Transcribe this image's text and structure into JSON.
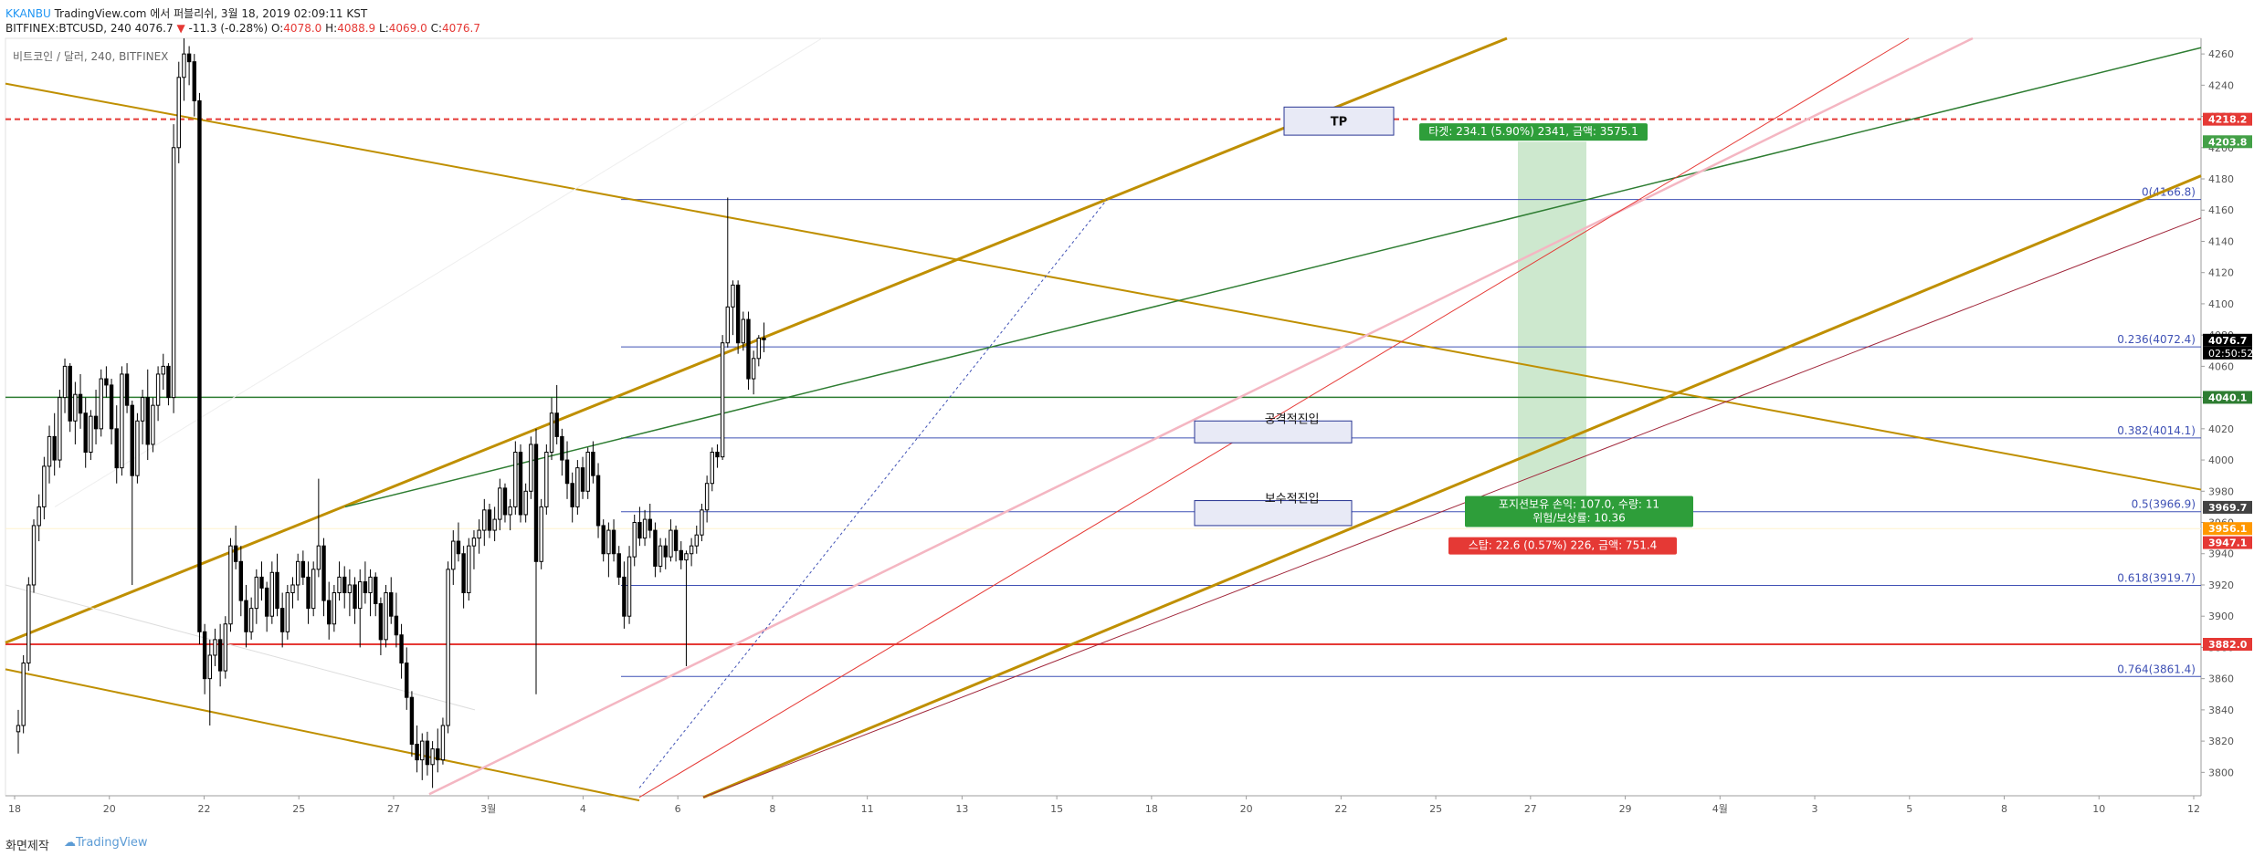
{
  "header": {
    "capture_prefix": "KKANBU",
    "capture_text": "TradingView.com 에서 퍼블리쉬, 3월 18, 2019 02:09:11 KST",
    "symbol": "BITFINEX:BTCUSD, 240",
    "last": "4076.7",
    "change_arrow": "▼",
    "change": "-11.3 (-0.28%)",
    "open_label": "O:",
    "open": "4078.0",
    "high_label": "H:",
    "high": "4088.9",
    "low_label": "L:",
    "low": "4069.0",
    "close_label": "C:",
    "close": "4076.7"
  },
  "footer": {
    "made_with": "화면제작",
    "logo": "TradingView"
  },
  "colors": {
    "up": "#ffffff",
    "down": "#000000",
    "wick": "#000000",
    "fib": "#3f51b5",
    "gold": "#bf8f00",
    "green": "#2e7d32",
    "red": "#e53935",
    "pink": "#f4b6c2",
    "darkred": "#a0263a",
    "target_zone": "#c8e6c9"
  },
  "chart_data": {
    "type": "candlestick",
    "title": "비트코인 / 달러, 240, BITFINEX",
    "ylim": [
      3785,
      4270
    ],
    "y_ticks": [
      3800,
      3820,
      3840,
      3860,
      3880,
      3900,
      3920,
      3940,
      3960,
      3980,
      4000,
      4020,
      4040,
      4060,
      4080,
      4100,
      4120,
      4140,
      4160,
      4180,
      4200,
      4220,
      4240,
      4260
    ],
    "x_ticks": [
      "18",
      "20",
      "22",
      "25",
      "27",
      "3월",
      "4",
      "6",
      "8",
      "11",
      "13",
      "15",
      "18",
      "20",
      "22",
      "25",
      "27",
      "29",
      "4월",
      "3",
      "5",
      "8",
      "10",
      "12"
    ],
    "last_countdown": "02:50:52",
    "candles": [
      [
        3826,
        3840,
        3812,
        3830
      ],
      [
        3830,
        3875,
        3825,
        3870
      ],
      [
        3870,
        3925,
        3865,
        3920
      ],
      [
        3920,
        3962,
        3915,
        3958
      ],
      [
        3958,
        3978,
        3948,
        3970
      ],
      [
        3970,
        4002,
        3962,
        3996
      ],
      [
        3996,
        4022,
        3985,
        4015
      ],
      [
        4015,
        4030,
        3990,
        4000
      ],
      [
        4000,
        4045,
        3995,
        4040
      ],
      [
        4040,
        4065,
        4030,
        4060
      ],
      [
        4060,
        4062,
        4018,
        4025
      ],
      [
        4025,
        4050,
        4010,
        4042
      ],
      [
        4042,
        4055,
        4020,
        4030
      ],
      [
        4030,
        4040,
        3995,
        4005
      ],
      [
        4005,
        4032,
        4000,
        4028
      ],
      [
        4028,
        4045,
        4010,
        4020
      ],
      [
        4020,
        4058,
        4015,
        4052
      ],
      [
        4052,
        4060,
        4040,
        4048
      ],
      [
        4048,
        4052,
        4010,
        4020
      ],
      [
        4020,
        4035,
        3985,
        3995
      ],
      [
        3995,
        4060,
        3990,
        4055
      ],
      [
        4055,
        4062,
        4030,
        4035
      ],
      [
        4035,
        4038,
        3920,
        3990
      ],
      [
        3990,
        4030,
        3985,
        4025
      ],
      [
        4025,
        4045,
        4010,
        4040
      ],
      [
        4040,
        4058,
        4000,
        4010
      ],
      [
        4010,
        4040,
        4005,
        4035
      ],
      [
        4035,
        4060,
        4025,
        4055
      ],
      [
        4055,
        4068,
        4045,
        4060
      ],
      [
        4060,
        4062,
        4035,
        4040
      ],
      [
        4040,
        4215,
        4030,
        4200
      ],
      [
        4200,
        4255,
        4190,
        4245
      ],
      [
        4245,
        4270,
        4230,
        4260
      ],
      [
        4260,
        4265,
        4240,
        4255
      ],
      [
        4255,
        4260,
        4220,
        4230
      ],
      [
        4230,
        4235,
        3882,
        3890
      ],
      [
        3890,
        3895,
        3850,
        3860
      ],
      [
        3860,
        3885,
        3830,
        3875
      ],
      [
        3875,
        3892,
        3868,
        3885
      ],
      [
        3885,
        3895,
        3855,
        3865
      ],
      [
        3865,
        3900,
        3860,
        3895
      ],
      [
        3895,
        3950,
        3890,
        3945
      ],
      [
        3945,
        3958,
        3930,
        3935
      ],
      [
        3935,
        3945,
        3900,
        3910
      ],
      [
        3910,
        3920,
        3880,
        3890
      ],
      [
        3890,
        3912,
        3885,
        3905
      ],
      [
        3905,
        3930,
        3895,
        3925
      ],
      [
        3925,
        3935,
        3910,
        3918
      ],
      [
        3918,
        3922,
        3890,
        3900
      ],
      [
        3900,
        3935,
        3895,
        3928
      ],
      [
        3928,
        3940,
        3900,
        3905
      ],
      [
        3905,
        3915,
        3880,
        3890
      ],
      [
        3890,
        3920,
        3885,
        3915
      ],
      [
        3915,
        3925,
        3905,
        3920
      ],
      [
        3920,
        3940,
        3910,
        3935
      ],
      [
        3935,
        3942,
        3920,
        3925
      ],
      [
        3925,
        3935,
        3895,
        3905
      ],
      [
        3905,
        3935,
        3900,
        3930
      ],
      [
        3930,
        3988,
        3925,
        3945
      ],
      [
        3945,
        3950,
        3900,
        3910
      ],
      [
        3910,
        3922,
        3885,
        3895
      ],
      [
        3895,
        3920,
        3890,
        3915
      ],
      [
        3915,
        3935,
        3910,
        3925
      ],
      [
        3925,
        3932,
        3905,
        3915
      ],
      [
        3915,
        3930,
        3900,
        3920
      ],
      [
        3920,
        3925,
        3895,
        3905
      ],
      [
        3905,
        3930,
        3880,
        3922
      ],
      [
        3922,
        3935,
        3908,
        3915
      ],
      [
        3915,
        3930,
        3900,
        3925
      ],
      [
        3925,
        3928,
        3900,
        3908
      ],
      [
        3908,
        3912,
        3875,
        3885
      ],
      [
        3885,
        3920,
        3880,
        3915
      ],
      [
        3915,
        3925,
        3895,
        3900
      ],
      [
        3900,
        3915,
        3880,
        3888
      ],
      [
        3888,
        3895,
        3860,
        3870
      ],
      [
        3870,
        3880,
        3840,
        3848
      ],
      [
        3848,
        3852,
        3810,
        3818
      ],
      [
        3818,
        3830,
        3800,
        3808
      ],
      [
        3808,
        3825,
        3795,
        3820
      ],
      [
        3820,
        3826,
        3798,
        3805
      ],
      [
        3805,
        3820,
        3790,
        3815
      ],
      [
        3815,
        3828,
        3800,
        3808
      ],
      [
        3808,
        3835,
        3805,
        3830
      ],
      [
        3830,
        3935,
        3825,
        3930
      ],
      [
        3930,
        3955,
        3920,
        3948
      ],
      [
        3948,
        3960,
        3935,
        3940
      ],
      [
        3940,
        3945,
        3905,
        3915
      ],
      [
        3915,
        3950,
        3910,
        3945
      ],
      [
        3945,
        3955,
        3930,
        3950
      ],
      [
        3950,
        3962,
        3940,
        3955
      ],
      [
        3955,
        3975,
        3945,
        3968
      ],
      [
        3968,
        3972,
        3950,
        3955
      ],
      [
        3955,
        3970,
        3948,
        3962
      ],
      [
        3962,
        3988,
        3955,
        3982
      ],
      [
        3982,
        3985,
        3960,
        3965
      ],
      [
        3965,
        3975,
        3955,
        3970
      ],
      [
        3970,
        4012,
        3965,
        4005
      ],
      [
        4005,
        4010,
        3960,
        3965
      ],
      [
        3965,
        3985,
        3960,
        3980
      ],
      [
        3980,
        4015,
        3975,
        4010
      ],
      [
        4010,
        4020,
        3850,
        3935
      ],
      [
        3935,
        3975,
        3930,
        3970
      ],
      [
        3970,
        4010,
        3965,
        4005
      ],
      [
        4005,
        4040,
        4000,
        4030
      ],
      [
        4030,
        4048,
        4010,
        4015
      ],
      [
        4015,
        4020,
        3990,
        4000
      ],
      [
        4000,
        4012,
        3975,
        3985
      ],
      [
        3985,
        3992,
        3960,
        3970
      ],
      [
        3970,
        4000,
        3965,
        3995
      ],
      [
        3995,
        4002,
        3975,
        3980
      ],
      [
        3980,
        4008,
        3975,
        4005
      ],
      [
        4005,
        4012,
        3985,
        3990
      ],
      [
        3990,
        3998,
        3950,
        3958
      ],
      [
        3958,
        3962,
        3935,
        3940
      ],
      [
        3940,
        3960,
        3925,
        3955
      ],
      [
        3955,
        3962,
        3935,
        3940
      ],
      [
        3940,
        3945,
        3920,
        3925
      ],
      [
        3925,
        3935,
        3892,
        3900
      ],
      [
        3900,
        3945,
        3895,
        3938
      ],
      [
        3938,
        3965,
        3932,
        3960
      ],
      [
        3960,
        3970,
        3945,
        3950
      ],
      [
        3950,
        3968,
        3945,
        3962
      ],
      [
        3962,
        3972,
        3950,
        3955
      ],
      [
        3955,
        3960,
        3925,
        3932
      ],
      [
        3932,
        3950,
        3928,
        3945
      ],
      [
        3945,
        3950,
        3930,
        3938
      ],
      [
        3938,
        3962,
        3935,
        3955
      ],
      [
        3955,
        3958,
        3935,
        3942
      ],
      [
        3942,
        3948,
        3930,
        3936
      ],
      [
        3936,
        3942,
        3868,
        3940
      ],
      [
        3940,
        3950,
        3932,
        3945
      ],
      [
        3945,
        3958,
        3940,
        3952
      ],
      [
        3952,
        3972,
        3948,
        3968
      ],
      [
        3968,
        3990,
        3960,
        3985
      ],
      [
        3985,
        4008,
        3980,
        4005
      ],
      [
        4005,
        4010,
        3995,
        4002
      ],
      [
        4002,
        4080,
        4000,
        4075
      ],
      [
        4075,
        4168,
        4072,
        4098
      ],
      [
        4098,
        4115,
        4080,
        4112
      ],
      [
        4112,
        4115,
        4068,
        4075
      ],
      [
        4075,
        4095,
        4070,
        4090
      ],
      [
        4090,
        4095,
        4045,
        4052
      ],
      [
        4052,
        4070,
        4042,
        4065
      ],
      [
        4065,
        4080,
        4060,
        4078
      ],
      [
        4078,
        4088,
        4069,
        4077
      ]
    ],
    "candle_start_x": 20,
    "candle_step": 5.67,
    "price_labels": [
      {
        "value": "4218.2",
        "price": 4218.2,
        "bg": "#e53935"
      },
      {
        "value": "4203.8",
        "price": 4203.8,
        "bg": "#43a047"
      },
      {
        "value": "4076.7",
        "price": 4076.7,
        "bg": "#000000"
      },
      {
        "value": "4040.1",
        "price": 4040.1,
        "bg": "#2e7d32"
      },
      {
        "value": "3969.7",
        "price": 3969.7,
        "bg": "#424242"
      },
      {
        "value": "3956.1",
        "price": 3956.1,
        "bg": "#ff9800"
      },
      {
        "value": "3947.1",
        "price": 3947.1,
        "bg": "#e53935"
      },
      {
        "value": "3882.0",
        "price": 3882.0,
        "bg": "#e53935"
      }
    ],
    "horizontal_lines": [
      {
        "price": 4218.2,
        "color": "#e53935",
        "dash": true,
        "width": 2
      },
      {
        "price": 4040.1,
        "color": "#2e7d32",
        "dash": false,
        "width": 1.5
      },
      {
        "price": 3882.0,
        "color": "#e53935",
        "dash": false,
        "width": 2
      },
      {
        "price": 3956.1,
        "color": "#fff3cd",
        "dash": false,
        "width": 1
      }
    ],
    "fib_levels": [
      {
        "ratio": "0",
        "value": "4166.8",
        "price": 4166.8,
        "label": "0(4166.8)"
      },
      {
        "ratio": "0.236",
        "value": "4072.4",
        "price": 4072.4,
        "label": "0.236(4072.4)"
      },
      {
        "ratio": "0.382",
        "value": "4014.1",
        "price": 4014.1,
        "label": "0.382(4014.1)"
      },
      {
        "ratio": "0.5",
        "value": "3966.9",
        "price": 3966.9,
        "label": "0.5(3966.9)"
      },
      {
        "ratio": "0.618",
        "value": "3919.7",
        "price": 3919.7,
        "label": "0.618(3919.7)"
      },
      {
        "ratio": "0.764",
        "value": "3861.4",
        "price": 3861.4,
        "label": "0.764(3861.4)"
      }
    ],
    "fib_x_range": [
      680,
      2410
    ],
    "trend_lines": [
      {
        "x1": 6,
        "p1": 4241,
        "x2": 2410,
        "p2": 3981,
        "color": "#bf8f00",
        "width": 2
      },
      {
        "x1": 6,
        "p1": 3883,
        "x2": 1650,
        "p2": 4270,
        "color": "#bf8f00",
        "width": 3
      },
      {
        "x1": 6,
        "p1": 3866,
        "x2": 700,
        "p2": 3782,
        "color": "#bf8f00",
        "width": 2
      },
      {
        "x1": 770,
        "p1": 3784,
        "x2": 2410,
        "p2": 4182,
        "color": "#bf8f00",
        "width": 3
      },
      {
        "x1": 378,
        "p1": 3970,
        "x2": 2410,
        "p2": 4264,
        "color": "#2e7d32",
        "width": 1.5
      },
      {
        "x1": 470,
        "p1": 3786,
        "x2": 2160,
        "p2": 4270,
        "color": "#f4b6c2",
        "width": 2.5
      },
      {
        "x1": 700,
        "p1": 3784,
        "x2": 2090,
        "p2": 4270,
        "color": "#e53935",
        "width": 1
      },
      {
        "x1": 770,
        "p1": 3784,
        "x2": 2410,
        "p2": 4155,
        "color": "#a0263a",
        "width": 1
      },
      {
        "x1": 700,
        "p1": 3790,
        "x2": 1212,
        "p2": 4166.8,
        "color": "#3f51b5",
        "width": 1,
        "dash": true
      },
      {
        "x1": 6,
        "p1": 3920,
        "x2": 520,
        "p2": 3840,
        "color": "#dddddd",
        "width": 1
      },
      {
        "x1": 60,
        "p1": 3970,
        "x2": 900,
        "p2": 4270,
        "color": "#eeeeee",
        "width": 1
      }
    ],
    "target_zone": {
      "x1": 1662,
      "x2": 1737,
      "p_top": 4203.8,
      "p_bottom": 3969.7
    },
    "annotations": [
      {
        "id": "tp",
        "text": "TP",
        "x": 1406,
        "p_top": 4226,
        "p_bottom": 4208,
        "w": 120
      },
      {
        "id": "aggressive",
        "text": "공격적진입",
        "x": 1308,
        "p_top": 4025,
        "p_bottom": 4011,
        "w": 172
      },
      {
        "id": "conservative",
        "text": "보수적진입",
        "x": 1308,
        "p_top": 3974,
        "p_bottom": 3958,
        "w": 172
      }
    ],
    "trade_labels": {
      "target": {
        "text": "타겟: 234.1 (5.90%) 2341, 금액: 3575.1",
        "x": 1574,
        "price": 4210
      },
      "position": {
        "line1": "포지션보유 손익: 107.0, 수량: 11",
        "line2": "위험/보상률: 10.36",
        "x": 1604,
        "price": 3967
      },
      "stop": {
        "text": "스탑: 22.6 (0.57%) 226, 금액: 751.4",
        "x": 1586,
        "price": 3945
      }
    }
  }
}
